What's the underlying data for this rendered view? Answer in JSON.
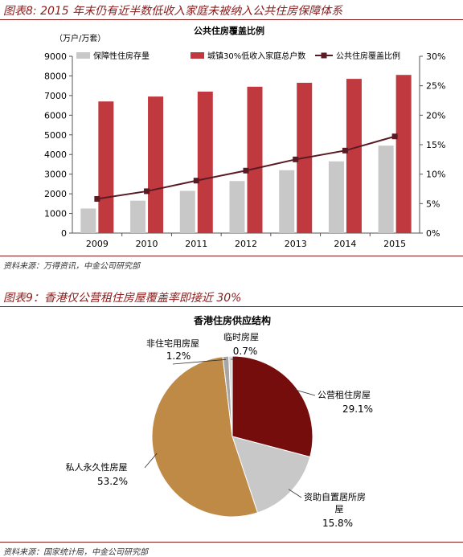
{
  "figure1": {
    "caption": "图表8: 2015 年末仍有近半数低收入家庭未被纳入公共住房保障体系",
    "source": "资料来源：万得资讯，中金公司研究部"
  },
  "figure2": {
    "caption": "图表9：香港仅公营租住房屋覆盖率即接近 30%",
    "source": "资料来源：国家统计局，中金公司研究部"
  },
  "chart_data": [
    {
      "type": "bar",
      "title": "公共住房覆盖比例",
      "ylabel": "（万户/万套）",
      "categories": [
        "2009",
        "2010",
        "2011",
        "2012",
        "2013",
        "2014",
        "2015"
      ],
      "ylim": [
        0,
        9000
      ],
      "yticks": [
        "0",
        "1000",
        "2000",
        "3000",
        "4000",
        "5000",
        "6000",
        "7000",
        "8000",
        "9000"
      ],
      "y2lim": [
        0,
        30
      ],
      "y2ticks": [
        "0%",
        "5%",
        "10%",
        "15%",
        "20%",
        "25%",
        "30%"
      ],
      "legend_position": "top",
      "series": [
        {
          "name": "保障性住房存量",
          "type": "bar",
          "axis": "left",
          "color": "#c8c8c8",
          "values": [
            1250,
            1650,
            2150,
            2650,
            3200,
            3650,
            4450
          ]
        },
        {
          "name": "城镇30%低收入家庭总户数",
          "type": "bar",
          "axis": "left",
          "color": "#c0393f",
          "values": [
            6700,
            6950,
            7200,
            7450,
            7650,
            7850,
            8050
          ]
        },
        {
          "name": "公共住房覆盖比例",
          "type": "line",
          "axis": "right",
          "color": "#5a1a24",
          "values": [
            5.8,
            7.1,
            8.9,
            10.6,
            12.5,
            14.0,
            16.4
          ]
        }
      ]
    },
    {
      "type": "pie",
      "title": "香港住房供应结构",
      "slices": [
        {
          "label": "公营租住房屋",
          "value": 29.1,
          "display": "29.1%",
          "color": "#760d0d"
        },
        {
          "label": "资助自置居所房屋",
          "value": 15.8,
          "display": "15.8%",
          "color": "#c8c8c8"
        },
        {
          "label": "私人永久性房屋",
          "value": 53.2,
          "display": "53.2%",
          "color": "#bf8a45"
        },
        {
          "label": "非住宅用房屋",
          "value": 1.2,
          "display": "1.2%",
          "color": "#a6a6a6"
        },
        {
          "label": "临时房屋",
          "value": 0.7,
          "display": "0.7%",
          "color": "#d9d9d9"
        }
      ]
    }
  ]
}
